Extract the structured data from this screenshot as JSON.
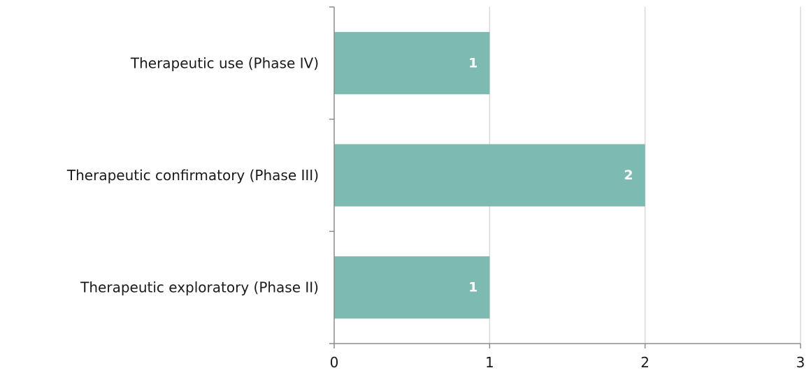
{
  "chart_data": {
    "type": "bar",
    "orientation": "horizontal",
    "categories": [
      "Therapeutic use (Phase IV)",
      "Therapeutic confirmatory (Phase III)",
      "Therapeutic exploratory (Phase II)"
    ],
    "values": [
      1,
      2,
      1
    ],
    "data_labels": [
      "1",
      "2",
      "1"
    ],
    "title": "",
    "xlabel": "",
    "ylabel": "",
    "xlim": [
      0,
      3
    ],
    "x_ticks": [
      "0",
      "1",
      "2",
      "3"
    ],
    "grid": "vertical",
    "legend": "none",
    "bar_color": "#7dbab1",
    "grid_color": "#d9d9d9",
    "axis_color": "#8c8c8c"
  }
}
